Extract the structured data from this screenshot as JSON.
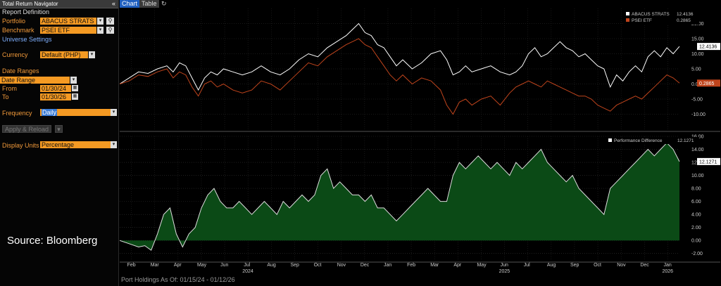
{
  "panel": {
    "title": "Total Return Navigator",
    "collapse_icon": "double-chevron-left-icon",
    "report_definition": "Report Definition",
    "portfolio_label": "Portfolio",
    "portfolio_value": "ABACUS STRATS",
    "benchmark_label": "Benchmark",
    "benchmark_value": "PSEI ETF",
    "universe_settings": "Universe Settings",
    "currency_label": "Currency",
    "currency_value": "Default (PHP)",
    "date_ranges_label": "Date Ranges",
    "date_range_value": "Date Range",
    "from_label": "From",
    "from_value": "01/30/24",
    "to_label": "To",
    "to_value": "01/30/26",
    "frequency_label": "Frequency",
    "frequency_value": "Daily",
    "apply_button": "Apply & Reload",
    "display_units_label": "Display Units",
    "display_units_value": "Percentage",
    "source_text": "Source: Bloomberg"
  },
  "tabs": {
    "chart": "Chart",
    "table": "Table",
    "refresh_icon": "refresh-icon"
  },
  "footer": {
    "text": "Port Holdings As Of: 01/15/24 - 01/12/26"
  },
  "colors": {
    "accent": "#f59a23",
    "port_line": "#ffffff",
    "bench_line": "#c0441c",
    "diff_fill": "#0b4a16"
  },
  "chart_data": [
    {
      "type": "line",
      "series": [
        {
          "name": "ABACUS STRATS",
          "last": "12.4136",
          "points": [
            [
              0,
              0
            ],
            [
              3,
              2
            ],
            [
              6,
              4
            ],
            [
              9,
              3.5
            ],
            [
              12,
              5
            ],
            [
              15,
              6
            ],
            [
              17,
              4
            ],
            [
              19,
              7
            ],
            [
              21,
              6
            ],
            [
              23,
              2
            ],
            [
              25,
              -2
            ],
            [
              27,
              2
            ],
            [
              29,
              4
            ],
            [
              31,
              3
            ],
            [
              33,
              5
            ],
            [
              36,
              4
            ],
            [
              39,
              3
            ],
            [
              42,
              4
            ],
            [
              45,
              6
            ],
            [
              48,
              4
            ],
            [
              51,
              3
            ],
            [
              54,
              5
            ],
            [
              57,
              8
            ],
            [
              60,
              10
            ],
            [
              63,
              9
            ],
            [
              66,
              12
            ],
            [
              69,
              14
            ],
            [
              72,
              16
            ],
            [
              74,
              18
            ],
            [
              76,
              20
            ],
            [
              78,
              17
            ],
            [
              80,
              16
            ],
            [
              82,
              13
            ],
            [
              84,
              12
            ],
            [
              86,
              9
            ],
            [
              88,
              6
            ],
            [
              90,
              8
            ],
            [
              93,
              5
            ],
            [
              96,
              7
            ],
            [
              99,
              10
            ],
            [
              102,
              11
            ],
            [
              104,
              8
            ],
            [
              106,
              3
            ],
            [
              108,
              4
            ],
            [
              110,
              6
            ],
            [
              112,
              4
            ],
            [
              115,
              5
            ],
            [
              118,
              6
            ],
            [
              121,
              4
            ],
            [
              124,
              3
            ],
            [
              126,
              4
            ],
            [
              128,
              6
            ],
            [
              130,
              10
            ],
            [
              132,
              12
            ],
            [
              134,
              9
            ],
            [
              136,
              10
            ],
            [
              138,
              12
            ],
            [
              140,
              14
            ],
            [
              142,
              12
            ],
            [
              144,
              11
            ],
            [
              146,
              9
            ],
            [
              148,
              10
            ],
            [
              150,
              8
            ],
            [
              152,
              6
            ],
            [
              154,
              5
            ],
            [
              156,
              -1
            ],
            [
              158,
              3
            ],
            [
              160,
              1
            ],
            [
              162,
              4
            ],
            [
              164,
              6
            ],
            [
              166,
              4
            ],
            [
              168,
              9
            ],
            [
              170,
              11
            ],
            [
              172,
              9
            ],
            [
              174,
              12
            ],
            [
              176,
              10
            ],
            [
              178,
              12.4136
            ]
          ]
        },
        {
          "name": "PSEI ETF",
          "last": "0.2865",
          "points": [
            [
              0,
              0
            ],
            [
              3,
              1
            ],
            [
              6,
              3
            ],
            [
              9,
              2.5
            ],
            [
              12,
              4
            ],
            [
              15,
              5
            ],
            [
              17,
              2
            ],
            [
              19,
              4
            ],
            [
              21,
              3
            ],
            [
              23,
              -1
            ],
            [
              25,
              -4
            ],
            [
              27,
              0
            ],
            [
              29,
              1
            ],
            [
              31,
              -1
            ],
            [
              33,
              0
            ],
            [
              36,
              -2
            ],
            [
              39,
              -3
            ],
            [
              42,
              -2
            ],
            [
              45,
              1
            ],
            [
              48,
              0
            ],
            [
              51,
              -2
            ],
            [
              54,
              1
            ],
            [
              57,
              4
            ],
            [
              60,
              7
            ],
            [
              63,
              6
            ],
            [
              66,
              9
            ],
            [
              69,
              11
            ],
            [
              72,
              13
            ],
            [
              74,
              14
            ],
            [
              76,
              15
            ],
            [
              78,
              13
            ],
            [
              80,
              12
            ],
            [
              82,
              9
            ],
            [
              84,
              6
            ],
            [
              86,
              3
            ],
            [
              88,
              1
            ],
            [
              90,
              3
            ],
            [
              93,
              0
            ],
            [
              96,
              2
            ],
            [
              99,
              1
            ],
            [
              102,
              -2
            ],
            [
              104,
              -7
            ],
            [
              106,
              -10
            ],
            [
              108,
              -6
            ],
            [
              110,
              -5
            ],
            [
              112,
              -7
            ],
            [
              115,
              -5
            ],
            [
              118,
              -4
            ],
            [
              121,
              -7
            ],
            [
              124,
              -3
            ],
            [
              126,
              -1
            ],
            [
              128,
              0
            ],
            [
              130,
              1
            ],
            [
              132,
              0
            ],
            [
              134,
              -1
            ],
            [
              136,
              1
            ],
            [
              138,
              0
            ],
            [
              140,
              -1
            ],
            [
              142,
              -2
            ],
            [
              144,
              -3
            ],
            [
              146,
              -4
            ],
            [
              148,
              -4
            ],
            [
              150,
              -5
            ],
            [
              152,
              -7
            ],
            [
              154,
              -8
            ],
            [
              156,
              -9
            ],
            [
              158,
              -7
            ],
            [
              160,
              -6
            ],
            [
              162,
              -5
            ],
            [
              164,
              -4
            ],
            [
              166,
              -5
            ],
            [
              168,
              -3
            ],
            [
              170,
              -1
            ],
            [
              172,
              1
            ],
            [
              174,
              3
            ],
            [
              176,
              2
            ],
            [
              178,
              0.2865
            ]
          ]
        }
      ],
      "ylim": [
        -15,
        25
      ],
      "yticks": [
        "20.00",
        "15.00",
        "10.00",
        "5.00",
        "0.00",
        "-5.00",
        "-10.00"
      ],
      "legend": "top-right"
    },
    {
      "type": "area",
      "series": [
        {
          "name": "Performance Difference",
          "last": "12.1271",
          "points": [
            [
              0,
              0
            ],
            [
              3,
              -0.5
            ],
            [
              6,
              -1
            ],
            [
              8,
              -0.8
            ],
            [
              10,
              -1.5
            ],
            [
              12,
              1
            ],
            [
              14,
              4
            ],
            [
              16,
              5
            ],
            [
              18,
              1
            ],
            [
              20,
              -1
            ],
            [
              22,
              1
            ],
            [
              24,
              2
            ],
            [
              26,
              5
            ],
            [
              28,
              7
            ],
            [
              30,
              8
            ],
            [
              32,
              6
            ],
            [
              34,
              5
            ],
            [
              36,
              5
            ],
            [
              38,
              6
            ],
            [
              40,
              5
            ],
            [
              42,
              4
            ],
            [
              44,
              5
            ],
            [
              46,
              6
            ],
            [
              48,
              5
            ],
            [
              50,
              4
            ],
            [
              52,
              6
            ],
            [
              54,
              5
            ],
            [
              56,
              6
            ],
            [
              58,
              7
            ],
            [
              60,
              6
            ],
            [
              62,
              7
            ],
            [
              64,
              10
            ],
            [
              66,
              11
            ],
            [
              68,
              8
            ],
            [
              70,
              9
            ],
            [
              72,
              8
            ],
            [
              74,
              7
            ],
            [
              76,
              7
            ],
            [
              78,
              6
            ],
            [
              80,
              7
            ],
            [
              82,
              5
            ],
            [
              84,
              5
            ],
            [
              86,
              4
            ],
            [
              88,
              3
            ],
            [
              90,
              4
            ],
            [
              92,
              5
            ],
            [
              94,
              6
            ],
            [
              96,
              7
            ],
            [
              98,
              8
            ],
            [
              100,
              7
            ],
            [
              102,
              6
            ],
            [
              104,
              6
            ],
            [
              106,
              10
            ],
            [
              108,
              12
            ],
            [
              110,
              11
            ],
            [
              112,
              12
            ],
            [
              114,
              13
            ],
            [
              116,
              12
            ],
            [
              118,
              11
            ],
            [
              120,
              12
            ],
            [
              122,
              11
            ],
            [
              124,
              10
            ],
            [
              126,
              12
            ],
            [
              128,
              11
            ],
            [
              130,
              12
            ],
            [
              132,
              13
            ],
            [
              134,
              14
            ],
            [
              136,
              12
            ],
            [
              138,
              11
            ],
            [
              140,
              10
            ],
            [
              142,
              9
            ],
            [
              144,
              10
            ],
            [
              146,
              8
            ],
            [
              148,
              7
            ],
            [
              150,
              6
            ],
            [
              152,
              5
            ],
            [
              154,
              4
            ],
            [
              156,
              8
            ],
            [
              158,
              9
            ],
            [
              160,
              10
            ],
            [
              162,
              11
            ],
            [
              164,
              12
            ],
            [
              166,
              13
            ],
            [
              168,
              14
            ],
            [
              170,
              13
            ],
            [
              172,
              14
            ],
            [
              174,
              15
            ],
            [
              176,
              14
            ],
            [
              178,
              12.1271
            ]
          ]
        }
      ],
      "ylim": [
        -3,
        16
      ],
      "yticks": [
        "16.00",
        "14.00",
        "12.00",
        "10.00",
        "8.00",
        "6.00",
        "4.00",
        "2.00",
        "0.00",
        "-2.00"
      ],
      "legend": "top-right"
    }
  ],
  "xaxis": {
    "months": [
      "Feb",
      "Mar",
      "Apr",
      "May",
      "Jun",
      "Jul",
      "Aug",
      "Sep",
      "Oct",
      "Nov",
      "Dec",
      "Jan",
      "Feb",
      "Mar",
      "Apr",
      "May",
      "Jun",
      "Jul",
      "Aug",
      "Sep",
      "Oct",
      "Nov",
      "Dec",
      "Jan"
    ],
    "years": [
      "2024",
      "2025",
      "2026"
    ]
  }
}
